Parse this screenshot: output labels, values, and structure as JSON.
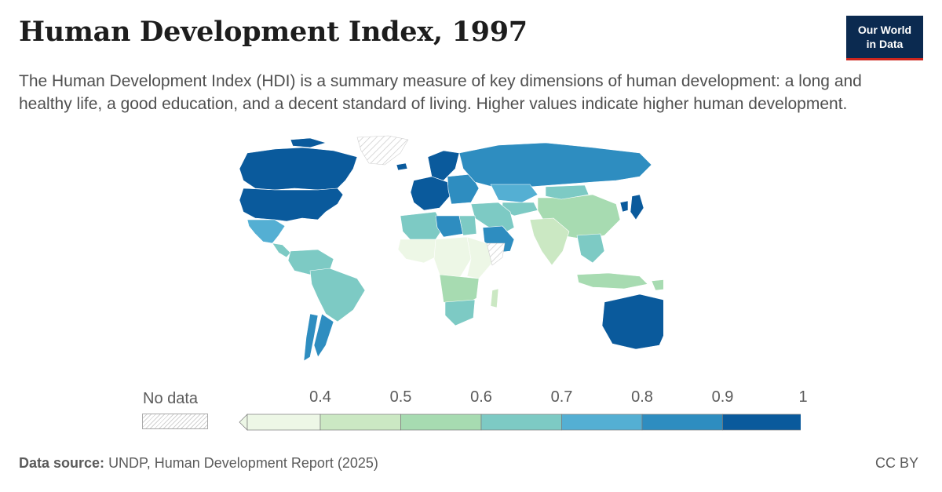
{
  "header": {
    "title": "Human Development Index, 1997",
    "subtitle": "The Human Development Index (HDI) is a summary measure of key dimensions of human development: a long and healthy life, a good education, and a decent standard of living. Higher values indicate higher human development."
  },
  "logo": {
    "line1": "Our World",
    "line2": "in Data"
  },
  "legend": {
    "no_data_label": "No data",
    "bins": [
      {
        "from": 0.3,
        "to": 0.4,
        "color": "#edf7e6"
      },
      {
        "from": 0.4,
        "to": 0.5,
        "color": "#cbe8c3"
      },
      {
        "from": 0.5,
        "to": 0.6,
        "color": "#a7dbb1"
      },
      {
        "from": 0.6,
        "to": 0.7,
        "color": "#7dcac4"
      },
      {
        "from": 0.7,
        "to": 0.8,
        "color": "#54afd3"
      },
      {
        "from": 0.8,
        "to": 0.9,
        "color": "#2e8dc0"
      },
      {
        "from": 0.9,
        "to": 1.0,
        "color": "#0a5a9c"
      }
    ],
    "tick_labels": [
      "0.4",
      "0.5",
      "0.6",
      "0.7",
      "0.8",
      "0.9",
      "1"
    ]
  },
  "regions": [
    {
      "name": "Canada",
      "bin": 6
    },
    {
      "name": "United States",
      "bin": 6
    },
    {
      "name": "Mexico",
      "bin": 4
    },
    {
      "name": "Central America",
      "bin": 3
    },
    {
      "name": "South America north",
      "bin": 3
    },
    {
      "name": "Brazil",
      "bin": 3
    },
    {
      "name": "Argentina",
      "bin": 5
    },
    {
      "name": "Chile",
      "bin": 5
    },
    {
      "name": "Greenland",
      "bin": null
    },
    {
      "name": "Iceland",
      "bin": 6
    },
    {
      "name": "Europe west",
      "bin": 6
    },
    {
      "name": "Scandinavia",
      "bin": 6
    },
    {
      "name": "Europe east",
      "bin": 5
    },
    {
      "name": "Russia",
      "bin": 5
    },
    {
      "name": "Kazakhstan",
      "bin": 4
    },
    {
      "name": "Central Asia",
      "bin": 3
    },
    {
      "name": "China",
      "bin": 2
    },
    {
      "name": "Mongolia",
      "bin": 3
    },
    {
      "name": "Japan",
      "bin": 6
    },
    {
      "name": "Korea",
      "bin": 6
    },
    {
      "name": "Middle East",
      "bin": 3
    },
    {
      "name": "Saudi Arabia",
      "bin": 5
    },
    {
      "name": "India",
      "bin": 1
    },
    {
      "name": "Southeast Asia",
      "bin": 3
    },
    {
      "name": "Indonesia",
      "bin": 2
    },
    {
      "name": "Papua New Guinea",
      "bin": 2
    },
    {
      "name": "Australia",
      "bin": 6
    },
    {
      "name": "New Zealand",
      "bin": 6
    },
    {
      "name": "North Africa west",
      "bin": 3
    },
    {
      "name": "Libya",
      "bin": 5
    },
    {
      "name": "Egypt",
      "bin": 3
    },
    {
      "name": "West Africa",
      "bin": 0
    },
    {
      "name": "Central Africa",
      "bin": 0
    },
    {
      "name": "East Africa",
      "bin": 0
    },
    {
      "name": "Somalia",
      "bin": null
    },
    {
      "name": "Southern Africa",
      "bin": 2
    },
    {
      "name": "South Africa",
      "bin": 3
    },
    {
      "name": "Madagascar",
      "bin": 1
    }
  ],
  "footer": {
    "source_label": "Data source:",
    "source_text": "UNDP, Human Development Report (2025)",
    "license": "CC BY"
  }
}
